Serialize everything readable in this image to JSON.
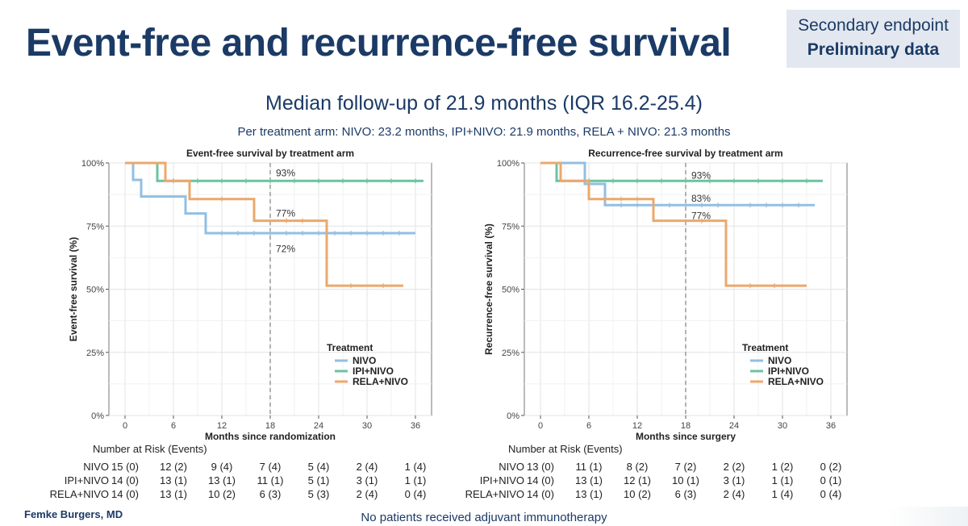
{
  "slide": {
    "title": "Event-free and recurrence-free survival",
    "badge_line1": "Secondary endpoint",
    "badge_line2": "Preliminary data",
    "subtitle": "Median follow-up of 21.9 months (IQR 16.2-25.4)",
    "arms_note": "Per treatment arm: NIVO: 23.2 months, IPI+NIVO: 21.9 months, RELA + NIVO: 21.3 months",
    "presenter": "Femke Burgers, MD",
    "footnote": "No patients received adjuvant immunotherapy"
  },
  "colors": {
    "NIVO": "#92bfe3",
    "IPI+NIVO": "#6cc3a0",
    "RELA+NIVO": "#eba86c",
    "title_navy": "#1b3a66"
  },
  "chart_data": [
    {
      "type": "line",
      "subtype": "kaplan-meier",
      "title": "Event-free survival by treatment arm",
      "xlabel": "Months since randomization",
      "ylabel": "Event-free survival (%)",
      "xlim": [
        -2,
        38
      ],
      "ylim": [
        0,
        100
      ],
      "x_ticks": [
        0,
        6,
        12,
        18,
        24,
        30,
        36
      ],
      "y_ticks": [
        0,
        25,
        50,
        75,
        100
      ],
      "y_tick_labels": [
        "0%",
        "25%",
        "50%",
        "75%",
        "100%"
      ],
      "grid": true,
      "reference_x": 18,
      "annotations": [
        {
          "text": "93%",
          "x": 18.5,
          "y": 96
        },
        {
          "text": "77%",
          "x": 18.5,
          "y": 80
        },
        {
          "text": "72%",
          "x": 18.5,
          "y": 66
        }
      ],
      "legend_title": "Treatment",
      "legend_position": "bottom-right",
      "series": [
        {
          "name": "NIVO",
          "steps": [
            [
              0,
              100
            ],
            [
              1,
              93.3
            ],
            [
              2,
              86.7
            ],
            [
              7.5,
              80
            ],
            [
              10,
              72.2
            ],
            [
              36,
              72.2
            ]
          ],
          "censor": [
            12,
            14,
            16,
            18,
            20,
            22,
            24,
            26,
            28,
            30,
            32,
            34
          ]
        },
        {
          "name": "IPI+NIVO",
          "steps": [
            [
              0,
              100
            ],
            [
              4,
              92.9
            ],
            [
              37,
              92.9
            ]
          ],
          "censor": [
            6,
            9,
            12,
            15,
            18,
            21,
            24,
            27,
            30,
            33,
            36
          ]
        },
        {
          "name": "RELA+NIVO",
          "steps": [
            [
              0,
              100
            ],
            [
              5,
              92.9
            ],
            [
              8,
              85.7
            ],
            [
              16,
              77.1
            ],
            [
              25,
              51.4
            ],
            [
              34.5,
              51.4
            ]
          ],
          "censor": [
            12,
            20,
            22,
            28,
            32
          ]
        }
      ],
      "risk_table": {
        "title": "Number at Risk (Events)",
        "rows": [
          {
            "label": "NIVO",
            "cells": [
              "15 (0)",
              "12 (2)",
              "9 (4)",
              "7 (4)",
              "5 (4)",
              "2 (4)",
              "1 (4)"
            ]
          },
          {
            "label": "IPI+NIVO",
            "cells": [
              "14 (0)",
              "13 (1)",
              "13 (1)",
              "11 (1)",
              "5 (1)",
              "3 (1)",
              "1 (1)"
            ]
          },
          {
            "label": "RELA+NIVO",
            "cells": [
              "14 (0)",
              "13 (1)",
              "10 (2)",
              "6 (3)",
              "5 (3)",
              "2 (4)",
              "0 (4)"
            ]
          }
        ]
      }
    },
    {
      "type": "line",
      "subtype": "kaplan-meier",
      "title": "Recurrence-free survival by treatment arm",
      "xlabel": "Months since surgery",
      "ylabel": "Recurrence-free survival (%)",
      "xlim": [
        -2,
        38
      ],
      "ylim": [
        0,
        100
      ],
      "x_ticks": [
        0,
        6,
        12,
        18,
        24,
        30,
        36
      ],
      "y_ticks": [
        0,
        25,
        50,
        75,
        100
      ],
      "y_tick_labels": [
        "0%",
        "25%",
        "50%",
        "75%",
        "100%"
      ],
      "grid": true,
      "reference_x": 18,
      "annotations": [
        {
          "text": "93%",
          "x": 18.5,
          "y": 95
        },
        {
          "text": "83%",
          "x": 18.5,
          "y": 86
        },
        {
          "text": "77%",
          "x": 18.5,
          "y": 79
        }
      ],
      "legend_title": "Treatment",
      "legend_position": "bottom-right",
      "series": [
        {
          "name": "NIVO",
          "steps": [
            [
              0,
              100
            ],
            [
              2.5,
              100
            ],
            [
              5.5,
              91.7
            ],
            [
              8,
              83.3
            ],
            [
              34,
              83.3
            ]
          ],
          "censor": [
            10,
            12,
            14,
            16,
            18,
            20,
            22,
            26,
            28,
            30,
            32
          ]
        },
        {
          "name": "IPI+NIVO",
          "steps": [
            [
              0,
              100
            ],
            [
              2,
              92.9
            ],
            [
              35,
              92.9
            ]
          ],
          "censor": [
            6,
            9,
            12,
            15,
            18,
            21,
            24,
            27,
            30,
            33
          ]
        },
        {
          "name": "RELA+NIVO",
          "steps": [
            [
              0,
              100
            ],
            [
              2.5,
              92.9
            ],
            [
              6,
              85.7
            ],
            [
              14,
              77.1
            ],
            [
              23,
              51.4
            ],
            [
              33,
              51.4
            ]
          ],
          "censor": [
            8,
            10,
            12,
            20,
            26,
            29
          ]
        }
      ],
      "risk_table": {
        "title": "Number at Risk (Events)",
        "rows": [
          {
            "label": "NIVO",
            "cells": [
              "13 (0)",
              "11 (1)",
              "8 (2)",
              "7 (2)",
              "2 (2)",
              "1 (2)",
              "0 (2)"
            ]
          },
          {
            "label": "IPI+NIVO",
            "cells": [
              "14 (0)",
              "13 (1)",
              "12 (1)",
              "10 (1)",
              "3 (1)",
              "1 (1)",
              "0 (1)"
            ]
          },
          {
            "label": "RELA+NIVO",
            "cells": [
              "14 (0)",
              "13 (1)",
              "10 (2)",
              "6 (3)",
              "2 (4)",
              "1 (4)",
              "0 (4)"
            ]
          }
        ]
      }
    }
  ]
}
